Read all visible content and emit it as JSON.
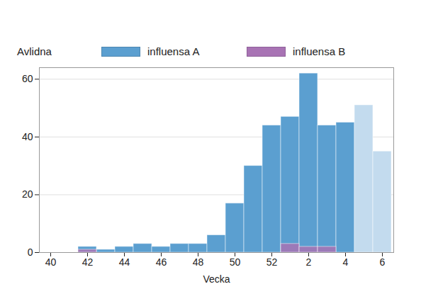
{
  "chart_data": {
    "type": "bar",
    "y_label": "Avlidna",
    "x_label": "Vecka",
    "categories": [
      "40",
      null,
      "42",
      null,
      "44",
      null,
      "46",
      null,
      "48",
      null,
      "50",
      null,
      "52",
      null,
      "2",
      null,
      "4",
      null,
      "6"
    ],
    "series": [
      {
        "name": "influensa A",
        "color": "#5b9fd0",
        "colors": [
          "#5b9fd0",
          "#5b9fd0",
          "#5b9fd0",
          "#5b9fd0",
          "#5b9fd0",
          "#5b9fd0",
          "#5b9fd0",
          "#5b9fd0",
          "#5b9fd0",
          "#5b9fd0",
          "#5b9fd0",
          "#5b9fd0",
          "#5b9fd0",
          "#5b9fd0",
          "#5b9fd0",
          "#5b9fd0",
          "#5b9fd0",
          "#c3dbee",
          "#c3dbee"
        ],
        "values": [
          null,
          null,
          2,
          1,
          2,
          3,
          2,
          3,
          3,
          6,
          17,
          30,
          44,
          47,
          62,
          44,
          45,
          51,
          35
        ]
      },
      {
        "name": "influensa B",
        "color": "#a873b4",
        "values": [
          null,
          null,
          1,
          null,
          null,
          null,
          null,
          null,
          null,
          null,
          null,
          null,
          null,
          3,
          2,
          2,
          null,
          null,
          null
        ]
      }
    ],
    "ylim": [
      0,
      64
    ],
    "yticks": [
      0,
      20,
      40,
      60
    ],
    "grid": true
  }
}
